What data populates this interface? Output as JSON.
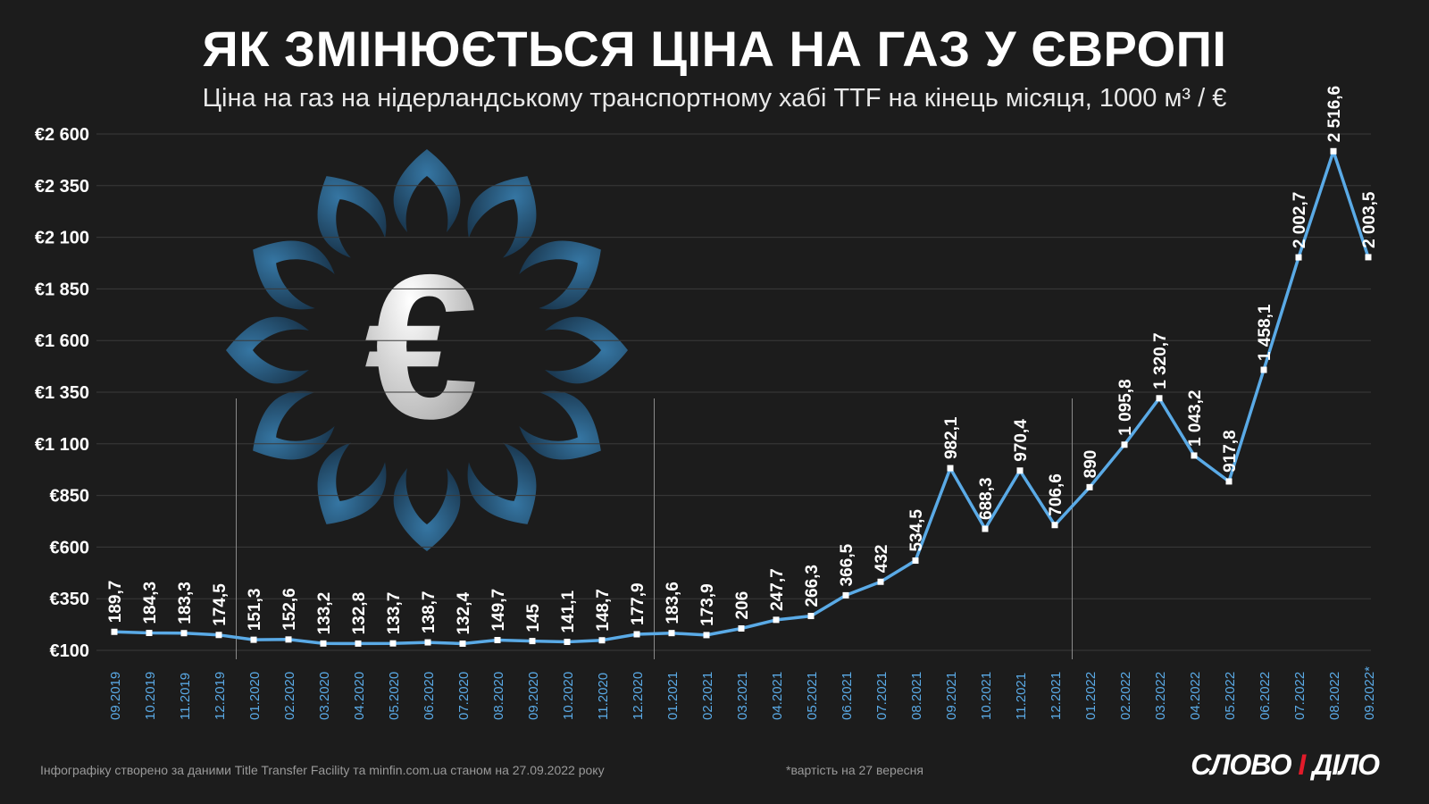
{
  "title": "ЯК ЗМІНЮЄТЬСЯ ЦІНА НА ГАЗ У ЄВРОПІ",
  "subtitle": "Ціна на газ на нідерландському транспортному хабі TTF на кінець місяця, 1000 м³ / €",
  "footer": {
    "source": "Інфографіку створено за даними Title Transfer Facility та minfin.com.ua станом на 27.09.2022 року",
    "note": "*вартість на 27 вересня",
    "logo_main": "СЛОВО ",
    "logo_i": "І",
    "logo_end": " ДІЛО"
  },
  "colors": {
    "background": "#1c1c1c",
    "line": "#5aaae6",
    "grid": "#3a3a3a",
    "decor": "#2e6e99"
  },
  "decor_icon": "euro-sign-icon",
  "chart_data": {
    "type": "line",
    "title": "ЯК ЗМІНЮЄТЬСЯ ЦІНА НА ГАЗ У ЄВРОПІ",
    "xlabel": "",
    "ylabel": "",
    "ylim": [
      100,
      2600
    ],
    "yticks": [
      100,
      350,
      600,
      850,
      1100,
      1350,
      1600,
      1850,
      2100,
      2350,
      2600
    ],
    "ytick_labels": [
      "€100",
      "€350",
      "€600",
      "€850",
      "€1 100",
      "€1 350",
      "€1 600",
      "€1 850",
      "€2 100",
      "€2 350",
      "€2 600"
    ],
    "grid": true,
    "x": [
      "09.2019",
      "10.2019",
      "11.2019",
      "12.2019",
      "01.2020",
      "02.2020",
      "03.2020",
      "04.2020",
      "05.2020",
      "06.2020",
      "07.2020",
      "08.2020",
      "09.2020",
      "10.2020",
      "11.2020",
      "12.2020",
      "01.2021",
      "02.2021",
      "03.2021",
      "04.2021",
      "05.2021",
      "06.2021",
      "07.2021",
      "08.2021",
      "09.2021",
      "10.2021",
      "11.2021",
      "12.2021",
      "01.2022",
      "02.2022",
      "03.2022",
      "04.2022",
      "05.2022",
      "06.2022",
      "07.2022",
      "08.2022",
      "09.2022*"
    ],
    "values": [
      189.7,
      184.3,
      183.3,
      174.5,
      151.3,
      152.6,
      133.2,
      132.8,
      133.7,
      138.7,
      132.4,
      149.7,
      145,
      141.1,
      148.7,
      177.9,
      183.6,
      173.9,
      206,
      247.7,
      266.3,
      366.5,
      432,
      534.5,
      982.1,
      688.3,
      970.4,
      706.6,
      890,
      1095.8,
      1320.7,
      1043.2,
      917.8,
      1458.1,
      2002.7,
      2516.6,
      2003.5
    ],
    "labels": [
      "189,7",
      "184,3",
      "183,3",
      "174,5",
      "151,3",
      "152,6",
      "133,2",
      "132,8",
      "133,7",
      "138,7",
      "132,4",
      "149,7",
      "145",
      "141,1",
      "148,7",
      "177,9",
      "183,6",
      "173,9",
      "206",
      "247,7",
      "266,3",
      "366,5",
      "432",
      "534,5",
      "982,1",
      "688,3",
      "970,4",
      "706,6",
      "890",
      "1 095,8",
      "1 320,7",
      "1 043,2",
      "917,8",
      "1 458,1",
      "2 002,7",
      "2 516,6",
      "2 003,5"
    ]
  }
}
